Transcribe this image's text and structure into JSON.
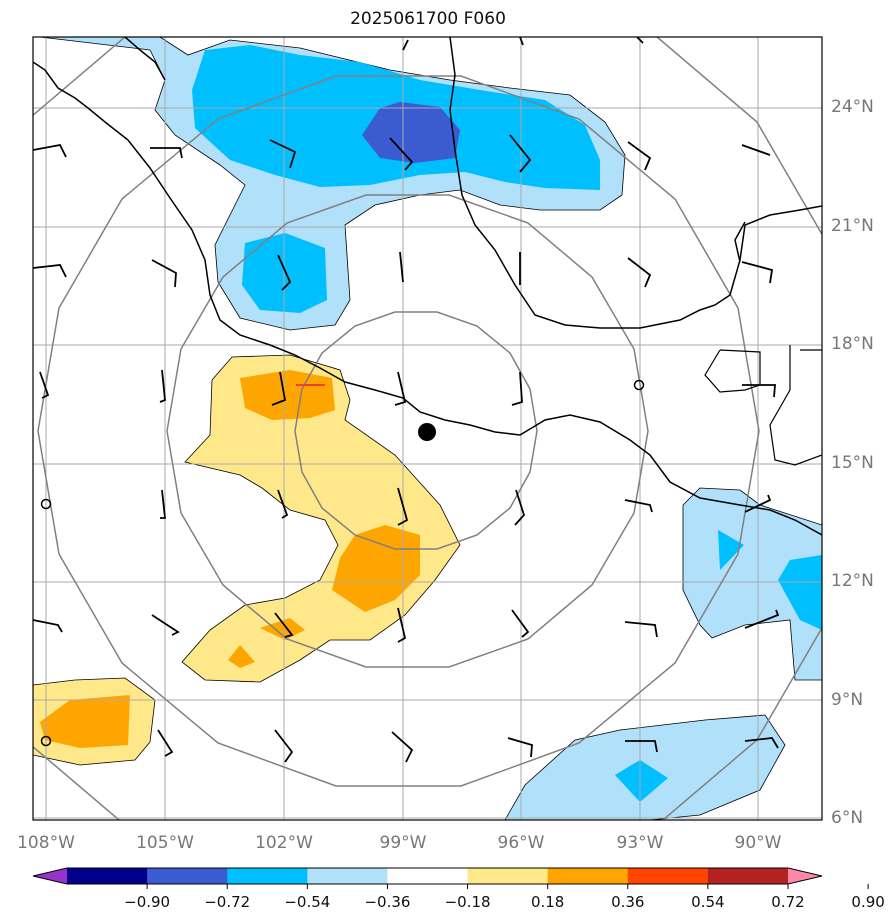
{
  "title": "2025061700 F060",
  "lat_labels": [
    "24°N",
    "21°N",
    "18°N",
    "15°N",
    "12°N",
    "9°N",
    "6°N"
  ],
  "lon_labels": [
    "108°W",
    "105°W",
    "102°W",
    "99°W",
    "96°W",
    "93°W",
    "90°W"
  ],
  "colorbar": {
    "ticks": [
      "−0.90",
      "−0.72",
      "−0.54",
      "−0.36",
      "−0.18",
      "0.18",
      "0.36",
      "0.54",
      "0.72",
      "0.90"
    ],
    "colors": [
      "#9932cc",
      "#00008b",
      "#3b5bd0",
      "#00bfff",
      "#b0e0fa",
      "#ffffff",
      "#ffe88a",
      "#ffa500",
      "#ff4500",
      "#b22222",
      "#ff88aa"
    ]
  },
  "fill_colors": {
    "light_blue": "#b0e0fa",
    "blue": "#00bfff",
    "dark_blue": "#3b5bd0",
    "light_yellow": "#ffe88a",
    "orange": "#ffa500"
  },
  "map_extent": {
    "lon": [
      -108.3,
      -88.5
    ],
    "lat": [
      5.9,
      25.8
    ]
  },
  "center_marker": {
    "lon": -98.3,
    "lat": 15.8
  }
}
